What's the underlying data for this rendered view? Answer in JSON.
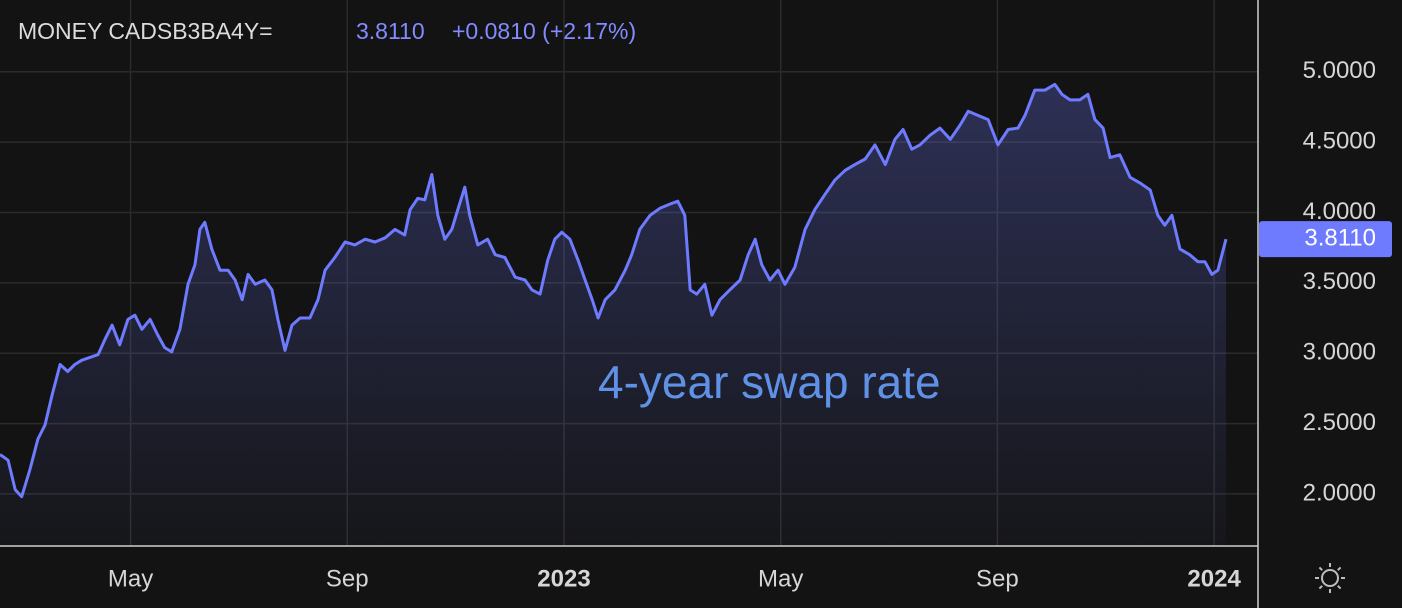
{
  "chart_data": {
    "type": "line",
    "title": "MONEY CADSB3BA4Y=",
    "last_label": "3.8110",
    "change_label": "+0.0810 (+2.17%)",
    "annotation": "4-year swap rate",
    "color": "#6f7bff",
    "grid": true,
    "xlim": [
      1.59,
      24.81
    ],
    "ylim": [
      1.63,
      5.51
    ],
    "xticks": [
      {
        "value": 4,
        "label": "May"
      },
      {
        "value": 8,
        "label": "Sep"
      },
      {
        "value": 12,
        "label": "2023"
      },
      {
        "value": 16,
        "label": "May"
      },
      {
        "value": 20,
        "label": "Sep"
      },
      {
        "value": 24,
        "label": "2024"
      }
    ],
    "yticks": [
      {
        "value": 2,
        "label": "2.0000"
      },
      {
        "value": 2.5,
        "label": "2.5000"
      },
      {
        "value": 3,
        "label": "3.0000"
      },
      {
        "value": 3.5,
        "label": "3.5000"
      },
      {
        "value": 4,
        "label": "4.0000"
      },
      {
        "value": 4.5,
        "label": "4.5000"
      },
      {
        "value": 5,
        "label": "5.0000"
      }
    ],
    "x": [
      1.59,
      1.74,
      1.87,
      1.99,
      2.14,
      2.29,
      2.42,
      2.55,
      2.7,
      2.84,
      2.97,
      3.1,
      3.25,
      3.4,
      3.53,
      3.66,
      3.8,
      3.95,
      4.08,
      4.21,
      4.36,
      4.5,
      4.63,
      4.76,
      4.91,
      5.06,
      5.19,
      5.28,
      5.37,
      5.5,
      5.65,
      5.8,
      5.93,
      6.06,
      6.17,
      6.3,
      6.48,
      6.61,
      6.72,
      6.85,
      6.98,
      7.13,
      7.31,
      7.46,
      7.59,
      7.77,
      7.96,
      8.14,
      8.33,
      8.51,
      8.7,
      8.88,
      9.06,
      9.16,
      9.3,
      9.43,
      9.56,
      9.67,
      9.8,
      9.93,
      10.04,
      10.17,
      10.26,
      10.41,
      10.59,
      10.73,
      10.91,
      11.1,
      11.28,
      11.41,
      11.56,
      11.7,
      11.83,
      11.96,
      12.11,
      12.26,
      12.39,
      12.52,
      12.63,
      12.76,
      12.94,
      13.13,
      13.25,
      13.4,
      13.59,
      13.77,
      13.96,
      14.1,
      14.23,
      14.33,
      14.45,
      14.6,
      14.73,
      14.88,
      15.06,
      15.25,
      15.4,
      15.53,
      15.65,
      15.8,
      15.95,
      16.08,
      16.26,
      16.45,
      16.63,
      16.82,
      17.0,
      17.19,
      17.37,
      17.56,
      17.74,
      17.93,
      18.11,
      18.26,
      18.42,
      18.57,
      18.76,
      18.94,
      19.13,
      19.31,
      19.46,
      19.64,
      19.83,
      20.01,
      20.2,
      20.38,
      20.51,
      20.69,
      20.88,
      21.06,
      21.19,
      21.34,
      21.52,
      21.67,
      21.8,
      21.95,
      22.08,
      22.26,
      22.45,
      22.63,
      22.82,
      22.96,
      23.09,
      23.22,
      23.37,
      23.55,
      23.7,
      23.83,
      23.96,
      24.07,
      24.22
    ],
    "series": [
      {
        "name": "4-year swap rate",
        "color": "#6f7bff",
        "values": [
          2.28,
          2.24,
          2.03,
          1.98,
          2.17,
          2.39,
          2.49,
          2.7,
          2.92,
          2.87,
          2.92,
          2.95,
          2.97,
          2.99,
          3.1,
          3.2,
          3.06,
          3.24,
          3.27,
          3.17,
          3.24,
          3.13,
          3.04,
          3.01,
          3.17,
          3.49,
          3.63,
          3.88,
          3.93,
          3.74,
          3.59,
          3.59,
          3.52,
          3.38,
          3.56,
          3.49,
          3.52,
          3.45,
          3.24,
          3.02,
          3.2,
          3.25,
          3.25,
          3.38,
          3.59,
          3.68,
          3.79,
          3.77,
          3.81,
          3.79,
          3.82,
          3.88,
          3.84,
          4.02,
          4.1,
          4.09,
          4.27,
          3.98,
          3.81,
          3.88,
          4.02,
          4.18,
          3.98,
          3.77,
          3.81,
          3.7,
          3.68,
          3.54,
          3.52,
          3.45,
          3.42,
          3.66,
          3.81,
          3.86,
          3.81,
          3.66,
          3.52,
          3.38,
          3.25,
          3.38,
          3.45,
          3.59,
          3.7,
          3.88,
          3.98,
          4.03,
          4.06,
          4.08,
          3.98,
          3.45,
          3.42,
          3.49,
          3.27,
          3.38,
          3.45,
          3.52,
          3.7,
          3.81,
          3.63,
          3.52,
          3.59,
          3.49,
          3.61,
          3.88,
          4.02,
          4.13,
          4.23,
          4.3,
          4.34,
          4.38,
          4.48,
          4.34,
          4.52,
          4.59,
          4.45,
          4.48,
          4.55,
          4.6,
          4.52,
          4.62,
          4.72,
          4.69,
          4.66,
          4.48,
          4.59,
          4.6,
          4.69,
          4.87,
          4.87,
          4.91,
          4.84,
          4.8,
          4.8,
          4.84,
          4.66,
          4.6,
          4.39,
          4.41,
          4.25,
          4.21,
          4.16,
          3.98,
          3.91,
          3.98,
          3.74,
          3.7,
          3.65,
          3.65,
          3.56,
          3.59,
          3.811
        ]
      }
    ]
  }
}
